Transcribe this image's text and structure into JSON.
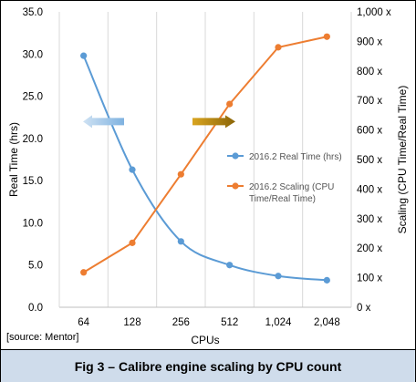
{
  "chart_data": {
    "type": "line",
    "xlabel": "CPUs",
    "ylabel_left": "Real Time (hrs)",
    "ylabel_right": "Scaling (CPU Time/Real Time)",
    "categories": [
      "64",
      "128",
      "256",
      "512",
      "1,024",
      "2,048"
    ],
    "y_left": {
      "min": 0,
      "max": 35,
      "step": 5,
      "ticks": [
        "0.0",
        "5.0",
        "10.0",
        "15.0",
        "20.0",
        "25.0",
        "30.0",
        "35.0"
      ]
    },
    "y_right": {
      "min": 0,
      "max": 1000,
      "step": 100,
      "ticks": [
        "0 x",
        "100 x",
        "200 x",
        "300 x",
        "400 x",
        "500 x",
        "600 x",
        "700 x",
        "800 x",
        "900 x",
        "1,000 x"
      ]
    },
    "series": [
      {
        "name": "2016.2 Real Time (hrs)",
        "axis": "left",
        "color": "#5b9bd5",
        "values": [
          29.8,
          16.3,
          7.8,
          5.0,
          3.7,
          3.2
        ],
        "smooth": true
      },
      {
        "name": "2016.2 Scaling (CPU Time/Real Time)",
        "axis": "right",
        "color": "#ed7d31",
        "values": [
          118,
          218,
          450,
          688,
          880,
          916
        ],
        "smooth": false
      }
    ],
    "legend": "right-middle",
    "annotations": [
      {
        "type": "arrow",
        "direction": "left",
        "color": "#9dc3e6",
        "points_to": "left axis"
      },
      {
        "type": "arrow",
        "direction": "right",
        "color": "#b8860b",
        "points_to": "right axis"
      }
    ],
    "grid": "vertical"
  },
  "source_note": "[source: Mentor]",
  "caption": "Fig 3 – Calibre engine scaling by CPU count"
}
